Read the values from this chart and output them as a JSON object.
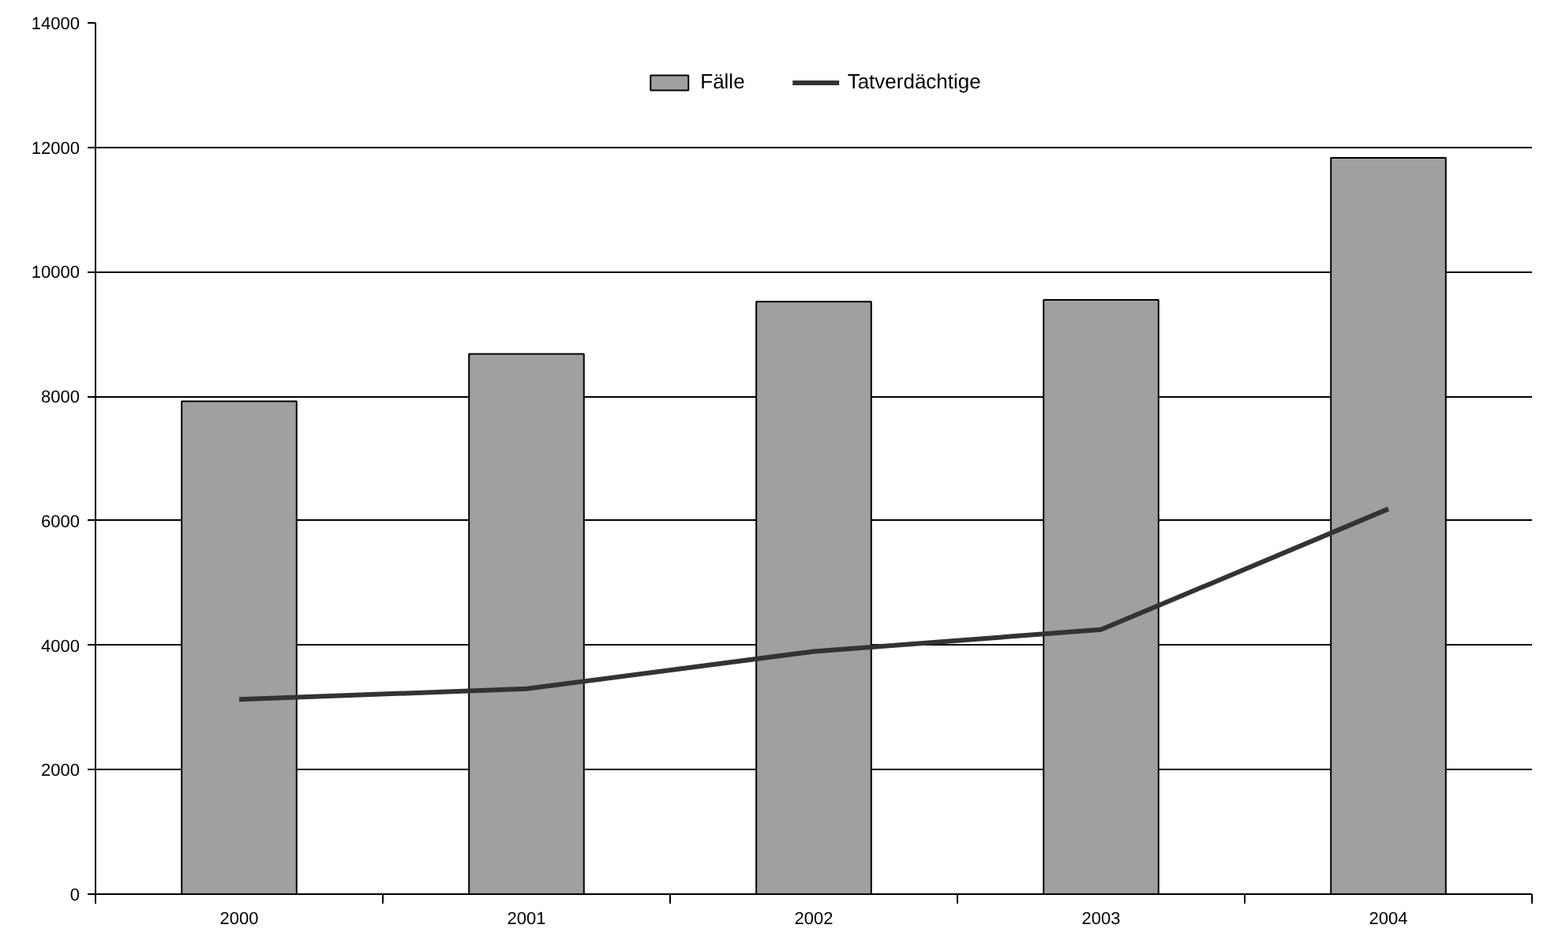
{
  "chart_data": {
    "type": "bar",
    "categories": [
      "2000",
      "2001",
      "2002",
      "2003",
      "2004"
    ],
    "series": [
      {
        "name": "Fälle",
        "color": "#a0a0a0",
        "values": [
          7920,
          8680,
          9520,
          9550,
          11830
        ]
      },
      {
        "name": "Tatverdächtige",
        "type": "line",
        "color": "#333333",
        "values": [
          3130,
          3300,
          3900,
          4250,
          6190
        ]
      }
    ],
    "ylim": [
      0,
      14000
    ],
    "yticks": [
      0,
      2000,
      4000,
      6000,
      8000,
      10000,
      12000,
      14000
    ],
    "grid": "y",
    "legend": "top",
    "marker": "none",
    "line_style": "solid"
  }
}
